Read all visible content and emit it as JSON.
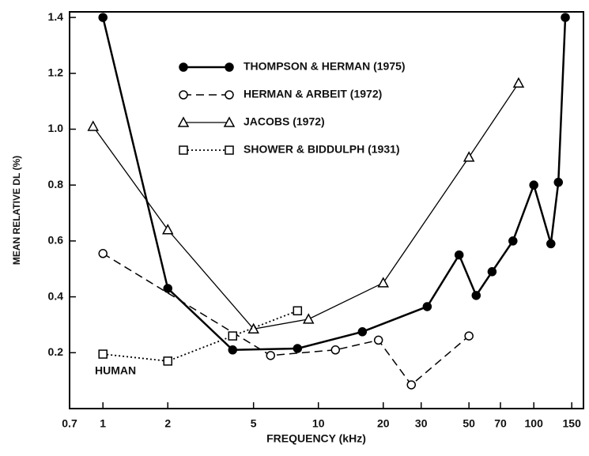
{
  "chart_data": {
    "type": "line",
    "xlabel": "FREQUENCY (kHz)",
    "ylabel": "MEAN RELATIVE DL (%)",
    "annotation": "HUMAN",
    "xscale": "log",
    "xlim": [
      0.7,
      170
    ],
    "ylim": [
      0,
      1.42
    ],
    "xticks": [
      0.7,
      1,
      2,
      5,
      10,
      20,
      30,
      50,
      70,
      100,
      150
    ],
    "yticks": [
      0.2,
      0.4,
      0.6,
      0.8,
      {
        "value": 1,
        "label": "1.0"
      },
      1.2,
      1.4
    ],
    "legend": "upper center",
    "series": [
      {
        "name": "THOMPSON & HERMAN (1975)",
        "color": "#000000",
        "marker": "filled-circle",
        "dash": "solid",
        "width": 2.5,
        "x": [
          1,
          2,
          4,
          8,
          16,
          32,
          45,
          54,
          64,
          80,
          100,
          120,
          130,
          140
        ],
        "values": [
          1.4,
          0.43,
          0.21,
          0.215,
          0.275,
          0.365,
          0.55,
          0.405,
          0.49,
          0.6,
          0.8,
          0.59,
          0.81,
          1.4
        ]
      },
      {
        "name": "HERMAN & ARBEIT (1972)",
        "color": "#000000",
        "marker": "open-circle",
        "dash": "dashed",
        "width": 1.5,
        "x": [
          1,
          6,
          12,
          19,
          27,
          50
        ],
        "values": [
          0.555,
          0.19,
          0.21,
          0.245,
          0.085,
          0.26
        ]
      },
      {
        "name": "JACOBS (1972)",
        "color": "#000000",
        "marker": "open-triangle",
        "dash": "solid",
        "width": 1.3,
        "x": [
          0.9,
          2,
          5,
          9,
          20,
          50,
          85
        ],
        "values": [
          1.01,
          0.64,
          0.285,
          0.32,
          0.45,
          0.9,
          1.165
        ]
      },
      {
        "name": "SHOWER & BIDDULPH (1931)",
        "color": "#000000",
        "marker": "open-square",
        "dash": "dotted",
        "width": 1.8,
        "x": [
          1,
          2,
          4,
          8
        ],
        "values": [
          0.195,
          0.17,
          0.26,
          0.35
        ]
      }
    ]
  }
}
